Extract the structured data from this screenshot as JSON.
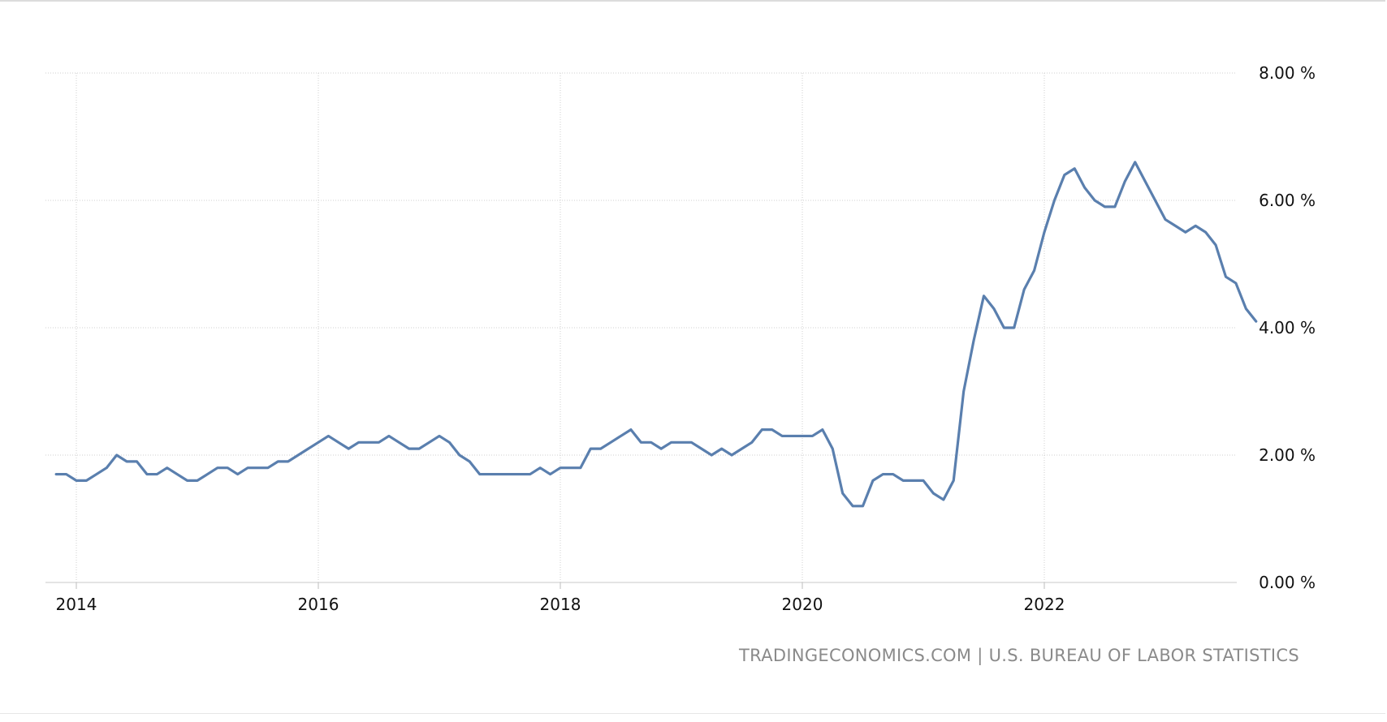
{
  "chart_data": {
    "type": "line",
    "title": "",
    "xlabel": "",
    "ylabel": "",
    "source": "TRADINGECONOMICS.COM | U.S. BUREAU OF LABOR STATISTICS",
    "ylim": [
      0,
      8
    ],
    "y_ticks": [
      {
        "value": 0,
        "label": "0.00 %"
      },
      {
        "value": 2,
        "label": "2.00 %"
      },
      {
        "value": 4,
        "label": "4.00 %"
      },
      {
        "value": 6,
        "label": "6.00 %"
      },
      {
        "value": 8,
        "label": "8.00 %"
      }
    ],
    "x_start": "2013-11",
    "x_ticks": [
      {
        "label": "2014",
        "date": "2014-01"
      },
      {
        "label": "2016",
        "date": "2016-01"
      },
      {
        "label": "2018",
        "date": "2018-01"
      },
      {
        "label": "2020",
        "date": "2020-01"
      },
      {
        "label": "2022",
        "date": "2022-01"
      }
    ],
    "grid": true,
    "legend": "none",
    "line_color": "#5a7fae",
    "series": [
      {
        "values": [
          1.7,
          1.7,
          1.6,
          1.6,
          1.7,
          1.8,
          2.0,
          1.9,
          1.9,
          1.7,
          1.7,
          1.8,
          1.7,
          1.6,
          1.6,
          1.7,
          1.8,
          1.8,
          1.7,
          1.8,
          1.8,
          1.8,
          1.9,
          1.9,
          2.0,
          2.1,
          2.2,
          2.3,
          2.2,
          2.1,
          2.2,
          2.2,
          2.2,
          2.3,
          2.2,
          2.1,
          2.1,
          2.2,
          2.3,
          2.2,
          2.0,
          1.9,
          1.7,
          1.7,
          1.7,
          1.7,
          1.7,
          1.7,
          1.8,
          1.7,
          1.8,
          1.8,
          1.8,
          2.1,
          2.1,
          2.2,
          2.3,
          2.4,
          2.2,
          2.2,
          2.1,
          2.2,
          2.2,
          2.2,
          2.1,
          2.0,
          2.1,
          2.0,
          2.1,
          2.2,
          2.4,
          2.4,
          2.3,
          2.3,
          2.3,
          2.3,
          2.4,
          2.1,
          1.4,
          1.2,
          1.2,
          1.6,
          1.7,
          1.7,
          1.6,
          1.6,
          1.6,
          1.4,
          1.3,
          1.6,
          3.0,
          3.8,
          4.5,
          4.3,
          4.0,
          4.0,
          4.6,
          4.9,
          5.5,
          6.0,
          6.4,
          6.5,
          6.2,
          6.0,
          5.9,
          5.9,
          6.3,
          6.6,
          6.3,
          6.0,
          5.7,
          5.6,
          5.5,
          5.6,
          5.5,
          5.3,
          4.8,
          4.7,
          4.3,
          4.1
        ]
      }
    ]
  }
}
